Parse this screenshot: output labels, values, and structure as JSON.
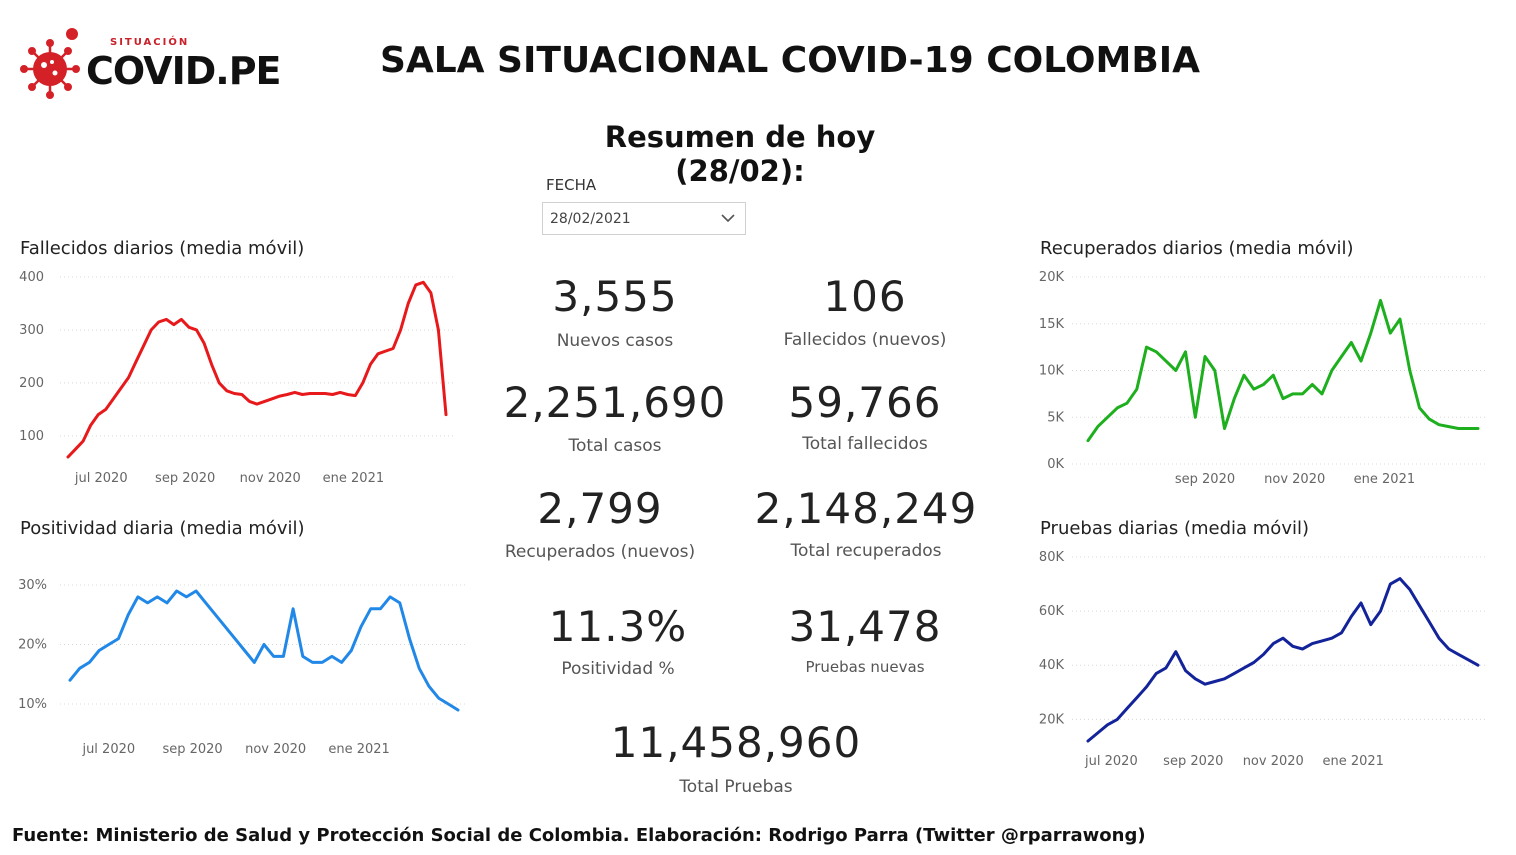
{
  "logo": {
    "top_text": "SITUACIÓN",
    "main_text": "COVID.PE",
    "icon": "virus-icon"
  },
  "title": "SALA SITUACIONAL COVID-19 COLOMBIA",
  "subtitle": "Resumen de hoy (28/02):",
  "filter": {
    "label": "FECHA",
    "value": "28/02/2021",
    "icon": "chevron-down-icon"
  },
  "kpis": {
    "nuevos_casos": {
      "value": "3,555",
      "label": "Nuevos casos"
    },
    "fallecidos_nuevos": {
      "value": "106",
      "label": "Fallecidos (nuevos)"
    },
    "total_casos": {
      "value": "2,251,690",
      "label": "Total casos"
    },
    "total_fallecidos": {
      "value": "59,766",
      "label": "Total fallecidos"
    },
    "recuperados_nuevos": {
      "value": "2,799",
      "label": "Recuperados (nuevos)"
    },
    "total_recuperados": {
      "value": "2,148,249",
      "label": "Total recuperados"
    },
    "positividad": {
      "value": "11.3%",
      "label": "Positividad %"
    },
    "pruebas_nuevas": {
      "value": "31,478",
      "label": "Pruebas nuevas"
    },
    "total_pruebas": {
      "value": "11,458,960",
      "label": "Total Pruebas"
    }
  },
  "colors": {
    "fallecidos": "#e8191b",
    "positividad": "#2188e8",
    "recuperados": "#1daf1d",
    "pruebas": "#13239a"
  },
  "footer": "Fuente: Ministerio de Salud y Protección Social de Colombia. Elaboración: Rodrigo Parra (Twitter @rparrawong)",
  "chart_data": [
    {
      "id": "fallecidos",
      "type": "line",
      "title": "Fallecidos diarios (media móvil)",
      "yticks": [
        "100",
        "200",
        "300",
        "400"
      ],
      "ytick_values": [
        100,
        200,
        300,
        400
      ],
      "ylim": [
        60,
        400
      ],
      "xticks": [
        "jul 2020",
        "sep 2020",
        "nov 2020",
        "ene 2021"
      ],
      "xtick_values": [
        0.088,
        0.31,
        0.535,
        0.755
      ],
      "x": [
        0,
        0.02,
        0.04,
        0.06,
        0.08,
        0.1,
        0.12,
        0.14,
        0.16,
        0.18,
        0.2,
        0.22,
        0.24,
        0.26,
        0.28,
        0.3,
        0.32,
        0.34,
        0.36,
        0.38,
        0.4,
        0.42,
        0.44,
        0.46,
        0.48,
        0.5,
        0.52,
        0.54,
        0.56,
        0.58,
        0.6,
        0.62,
        0.64,
        0.66,
        0.68,
        0.7,
        0.72,
        0.74,
        0.76,
        0.78,
        0.8,
        0.82,
        0.84,
        0.86,
        0.88,
        0.9,
        0.92,
        0.94,
        0.96,
        0.98,
        1.0
      ],
      "values": [
        60,
        75,
        90,
        120,
        140,
        150,
        170,
        190,
        210,
        240,
        270,
        300,
        315,
        320,
        310,
        320,
        305,
        300,
        275,
        235,
        200,
        185,
        180,
        178,
        165,
        160,
        165,
        170,
        175,
        178,
        182,
        178,
        180,
        180,
        180,
        178,
        182,
        178,
        176,
        200,
        235,
        255,
        260,
        265,
        300,
        350,
        385,
        390,
        370,
        300,
        140
      ]
    },
    {
      "id": "positividad",
      "type": "line",
      "title": "Positividad diaria (media móvil)",
      "yticks": [
        "10%",
        "20%",
        "30%"
      ],
      "ytick_values": [
        10,
        20,
        30
      ],
      "ylim": [
        9,
        30
      ],
      "xticks": [
        "jul 2020",
        "sep 2020",
        "nov 2020",
        "ene 2021"
      ],
      "xtick_values": [
        0.1,
        0.316,
        0.53,
        0.745
      ],
      "x": [
        0,
        0.025,
        0.05,
        0.075,
        0.1,
        0.125,
        0.15,
        0.175,
        0.2,
        0.225,
        0.25,
        0.275,
        0.3,
        0.325,
        0.35,
        0.375,
        0.4,
        0.425,
        0.45,
        0.475,
        0.5,
        0.525,
        0.55,
        0.575,
        0.6,
        0.625,
        0.65,
        0.675,
        0.7,
        0.725,
        0.75,
        0.775,
        0.8,
        0.825,
        0.85,
        0.875,
        0.9,
        0.925,
        0.95,
        0.975,
        1.0
      ],
      "values": [
        14,
        16,
        17,
        19,
        20,
        21,
        25,
        28,
        27,
        28,
        27,
        29,
        28,
        29,
        27,
        25,
        23,
        21,
        19,
        17,
        20,
        18,
        18,
        26,
        18,
        17,
        17,
        18,
        17,
        19,
        23,
        26,
        26,
        28,
        27,
        21,
        16,
        13,
        11,
        10,
        9
      ]
    },
    {
      "id": "recuperados",
      "type": "line",
      "title": "Recuperados diarios (media móvil)",
      "yticks": [
        "0K",
        "5K",
        "10K",
        "15K",
        "20K"
      ],
      "ytick_values": [
        0,
        5000,
        10000,
        15000,
        20000
      ],
      "ylim": [
        0,
        20000
      ],
      "xticks": [
        "sep 2020",
        "nov 2020",
        "ene 2021"
      ],
      "xtick_values": [
        0.3,
        0.53,
        0.76
      ],
      "x": [
        0,
        0.025,
        0.05,
        0.075,
        0.1,
        0.125,
        0.15,
        0.175,
        0.2,
        0.225,
        0.25,
        0.275,
        0.3,
        0.325,
        0.35,
        0.375,
        0.4,
        0.425,
        0.45,
        0.475,
        0.5,
        0.525,
        0.55,
        0.575,
        0.6,
        0.625,
        0.65,
        0.675,
        0.7,
        0.725,
        0.75,
        0.775,
        0.8,
        0.825,
        0.85,
        0.875,
        0.9,
        0.925,
        0.95,
        0.975,
        1.0
      ],
      "values": [
        2500,
        4000,
        5000,
        6000,
        6500,
        8000,
        12500,
        12000,
        11000,
        10000,
        12000,
        5000,
        11500,
        10000,
        3800,
        7000,
        9500,
        8000,
        8500,
        9500,
        7000,
        7500,
        7500,
        8500,
        7500,
        10000,
        11500,
        13000,
        11000,
        14000,
        17500,
        14000,
        15500,
        10000,
        6000,
        4800,
        4200,
        4000,
        3800,
        3800,
        3800
      ],
      "note": "approximate"
    },
    {
      "id": "pruebas",
      "type": "line",
      "title": "Pruebas diarias (media móvil)",
      "yticks": [
        "20K",
        "40K",
        "60K",
        "80K"
      ],
      "ytick_values": [
        20000,
        40000,
        60000,
        80000
      ],
      "ylim": [
        12000,
        80000
      ],
      "xticks": [
        "jul 2020",
        "sep 2020",
        "nov 2020",
        "ene 2021"
      ],
      "xtick_values": [
        0.06,
        0.27,
        0.475,
        0.68
      ],
      "x": [
        0,
        0.025,
        0.05,
        0.075,
        0.1,
        0.125,
        0.15,
        0.175,
        0.2,
        0.225,
        0.25,
        0.275,
        0.3,
        0.325,
        0.35,
        0.375,
        0.4,
        0.425,
        0.45,
        0.475,
        0.5,
        0.525,
        0.55,
        0.575,
        0.6,
        0.625,
        0.65,
        0.675,
        0.7,
        0.725,
        0.75,
        0.775,
        0.8,
        0.825,
        0.85,
        0.875,
        0.9,
        0.925,
        0.95,
        0.975,
        1.0
      ],
      "values": [
        12000,
        15000,
        18000,
        20000,
        24000,
        28000,
        32000,
        37000,
        39000,
        45000,
        38000,
        35000,
        33000,
        34000,
        35000,
        37000,
        39000,
        41000,
        44000,
        48000,
        50000,
        47000,
        46000,
        48000,
        49000,
        50000,
        52000,
        58000,
        63000,
        55000,
        60000,
        70000,
        72000,
        68000,
        62000,
        56000,
        50000,
        46000,
        44000,
        42000,
        40000
      ]
    }
  ]
}
